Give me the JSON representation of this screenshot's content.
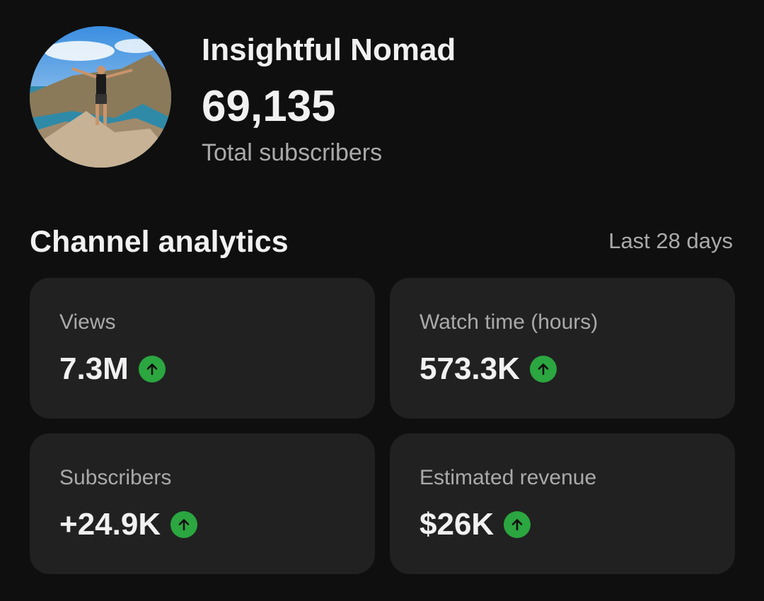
{
  "channel": {
    "name": "Insightful Nomad",
    "subscriber_count": "69,135",
    "subscriber_label": "Total subscribers"
  },
  "analytics": {
    "title": "Channel analytics",
    "period": "Last 28 days",
    "cards": [
      {
        "label": "Views",
        "value": "7.3M",
        "trend": "up"
      },
      {
        "label": "Watch time (hours)",
        "value": "573.3K",
        "trend": "up"
      },
      {
        "label": "Subscribers",
        "value": "+24.9K",
        "trend": "up"
      },
      {
        "label": "Estimated revenue",
        "value": "$26K",
        "trend": "up"
      }
    ]
  },
  "colors": {
    "background": "#0f0f0f",
    "card": "#212121",
    "trend_up": "#2ba640"
  }
}
